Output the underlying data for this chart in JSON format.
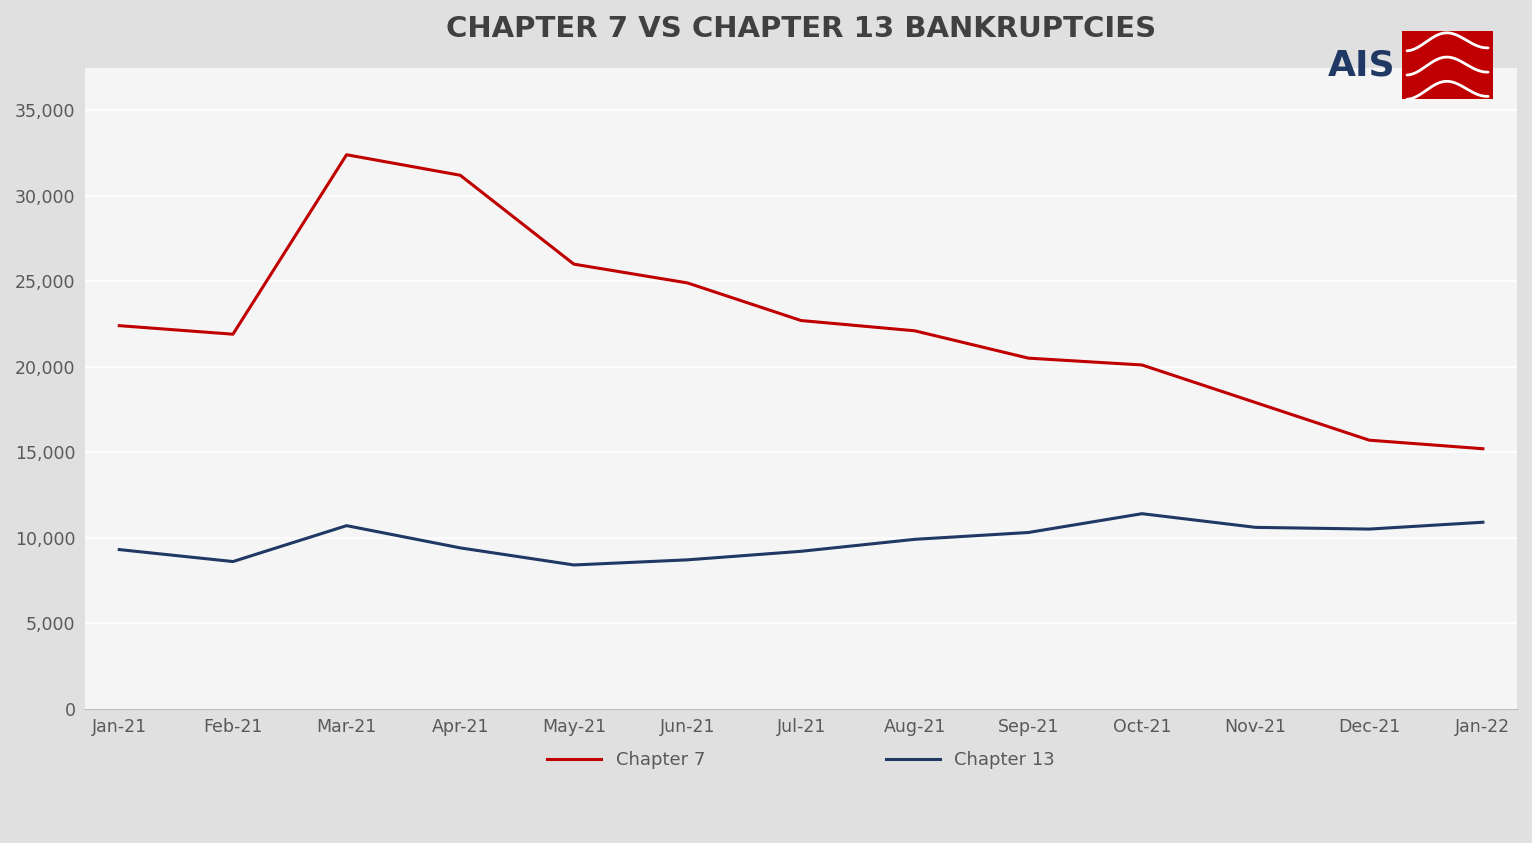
{
  "title": "CHAPTER 7 VS CHAPTER 13 BANKRUPTCIES",
  "categories": [
    "Jan-21",
    "Feb-21",
    "Mar-21",
    "Apr-21",
    "May-21",
    "Jun-21",
    "Jul-21",
    "Aug-21",
    "Sep-21",
    "Oct-21",
    "Nov-21",
    "Dec-21",
    "Jan-22"
  ],
  "chapter7": [
    22400,
    21900,
    32400,
    31200,
    26000,
    24900,
    22700,
    22100,
    20500,
    20100,
    17900,
    15700,
    15200
  ],
  "chapter13": [
    9300,
    8600,
    10700,
    9400,
    8400,
    8700,
    9200,
    9900,
    10300,
    11400,
    10600,
    10500,
    10900
  ],
  "chapter7_color": "#C00000",
  "chapter13_color": "#1F3864",
  "fig_bg_color": "#E0E0E0",
  "plot_bg_color": "#F5F5F5",
  "grid_color": "#FFFFFF",
  "title_color": "#404040",
  "tick_label_color": "#595959",
  "ylim": [
    0,
    37500
  ],
  "yticks": [
    0,
    5000,
    10000,
    15000,
    20000,
    25000,
    30000,
    35000
  ],
  "title_fontsize": 21,
  "tick_fontsize": 12.5,
  "legend_fontsize": 13,
  "line_width": 2.2,
  "logo_blue": "#1F3864",
  "logo_red": "#C00000"
}
